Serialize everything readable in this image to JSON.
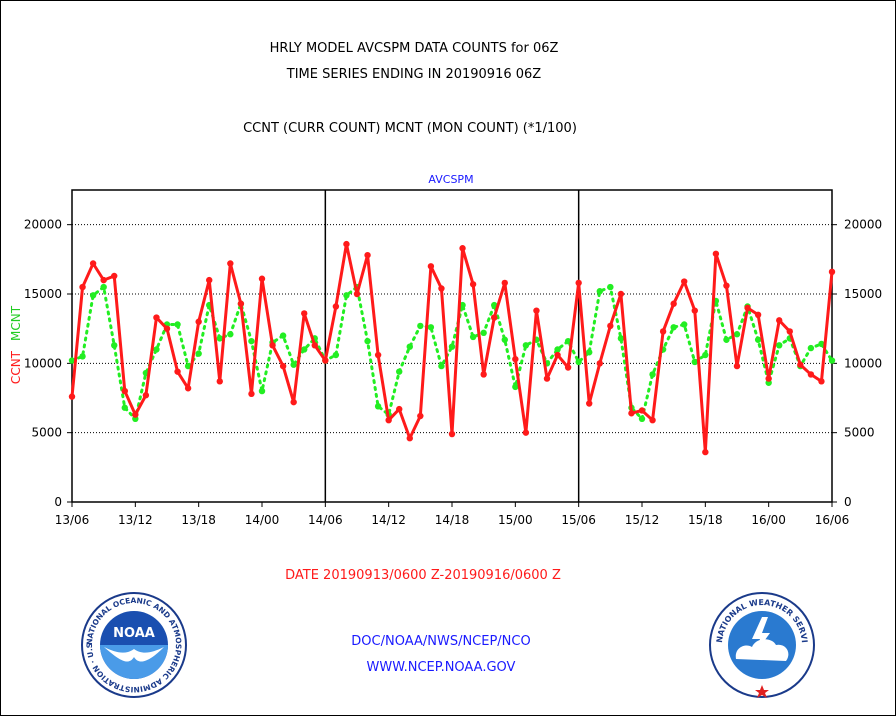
{
  "chart_data": {
    "type": "line",
    "title_lines": [
      "HRLY MODEL AVCSPM DATA COUNTS for 06Z",
      "TIME SERIES ENDING IN 20190916 06Z"
    ],
    "subtitle": "CCNT (CURR COUNT) MCNT (MON COUNT) (*1/100)",
    "panel_label": "AVCSPM",
    "ylabel_left_ccnt": "CCNT",
    "ylabel_left_mcnt": "MCNT",
    "xlabel": "DATE 20190913/0600 Z-20190916/0600 Z",
    "ylim": [
      0,
      22500
    ],
    "yticks": [
      0,
      5000,
      10000,
      15000,
      20000
    ],
    "ytick_labels": [
      "0",
      "5000",
      "10000",
      "15000",
      "20000"
    ],
    "xlim_hours": [
      0,
      72
    ],
    "xticks_hours": [
      0,
      6,
      12,
      18,
      24,
      30,
      36,
      42,
      48,
      54,
      60,
      66,
      72
    ],
    "xtick_labels": [
      "13/06",
      "13/12",
      "13/18",
      "14/00",
      "14/06",
      "14/12",
      "14/18",
      "15/00",
      "15/06",
      "15/12",
      "15/18",
      "16/00",
      "16/06"
    ],
    "day_dividers_hours": [
      24,
      48
    ],
    "grid": true,
    "colors": {
      "ccnt": "#ff1a1a",
      "mcnt": "#22ee22",
      "title": "#000000",
      "panel_label": "#1a1aff"
    },
    "series": [
      {
        "name": "CCNT",
        "style": "solid",
        "values": [
          7600,
          15500,
          17200,
          16000,
          16300,
          8000,
          6300,
          7700,
          13300,
          12500,
          9400,
          8200,
          13000,
          16000,
          8700,
          17200,
          14300,
          7800,
          16100,
          11300,
          9800,
          7200,
          13600,
          11300,
          10200,
          14100,
          18600,
          15000,
          17800,
          10600,
          5900,
          6700,
          4600,
          6200,
          17000,
          15400,
          4900,
          18300,
          15700,
          9200,
          13300,
          15800,
          10300,
          5000,
          13800,
          8900,
          10600,
          9700,
          15800,
          7100,
          10000,
          12700,
          15000,
          6400,
          6600,
          5900,
          12300,
          14300,
          15900,
          13800,
          3600,
          17900,
          15600,
          9800,
          14000,
          13500,
          8900,
          13100,
          12300,
          9900,
          9200,
          8700,
          16600
        ]
      },
      {
        "name": "MCNT",
        "style": "dotted",
        "values": [
          10200,
          10500,
          14900,
          15500,
          11300,
          6800,
          6000,
          9300,
          11000,
          12800,
          12800,
          9800,
          10700,
          14200,
          11800,
          12100,
          14300,
          11600,
          8000,
          11500,
          12000,
          9900,
          11000,
          11800,
          10200,
          10600,
          14900,
          15500,
          11600,
          6900,
          6300,
          9400,
          11200,
          12700,
          12600,
          9800,
          11200,
          14200,
          11900,
          12200,
          14200,
          11700,
          8300,
          11300,
          11700,
          10000,
          11000,
          11600,
          10100,
          10800,
          15200,
          15500,
          11800,
          6800,
          6000,
          9200,
          11000,
          12600,
          12800,
          10100,
          10600,
          14500,
          11700,
          12100,
          14100,
          11700,
          8600,
          11300,
          11800,
          9800,
          11100,
          11400,
          10200
        ]
      }
    ]
  },
  "footer": {
    "line1": "DOC/NOAA/NWS/NCEP/NCO",
    "line2": "WWW.NCEP.NOAA.GOV",
    "noaa_logo_word": "NOAA",
    "noaa_ring_text": "NATIONAL OCEANIC AND ATMOSPHERIC ADMINISTRATION · U.S. DEPARTMENT OF COMMERCE ·",
    "nws_ring_text": "NATIONAL WEATHER SERVICE",
    "noaa_logo_icon": "noaa-seagull-emblem",
    "nws_logo_icon": "nws-storm-emblem",
    "colors": {
      "footer_text": "#1a1aff",
      "xlabel": "#ff1a1a"
    }
  }
}
